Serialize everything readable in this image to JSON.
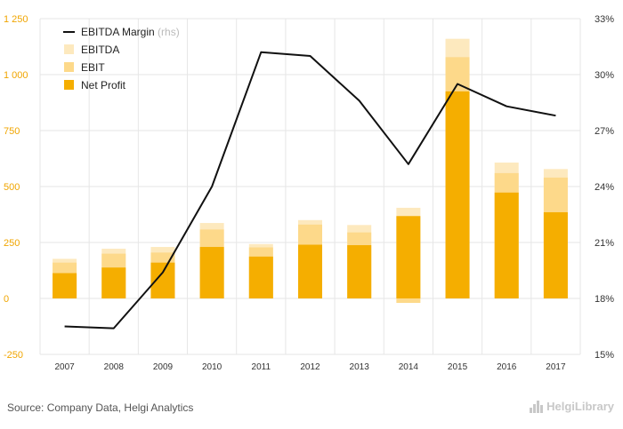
{
  "chart_data": {
    "type": "bar",
    "categories": [
      "2007",
      "2008",
      "2009",
      "2010",
      "2011",
      "2012",
      "2013",
      "2014",
      "2015",
      "2016",
      "2017"
    ],
    "series": [
      {
        "name": "Net Profit",
        "axis": "left",
        "values": [
          113,
          138,
          160,
          230,
          187,
          240,
          238,
          368,
          925,
          473,
          385
        ],
        "color": "#f5ae00"
      },
      {
        "name": "EBIT",
        "axis": "left",
        "values": [
          160,
          200,
          205,
          308,
          228,
          330,
          295,
          -20,
          1078,
          560,
          540
        ],
        "color": "#fdd98a"
      },
      {
        "name": "EBITDA",
        "axis": "left",
        "values": [
          177,
          222,
          230,
          337,
          243,
          350,
          328,
          405,
          1160,
          607,
          578
        ],
        "color": "#fde9be"
      },
      {
        "name": "EBITDA Margin",
        "axis": "right",
        "type": "line",
        "unit": "%",
        "values": [
          16.5,
          16.4,
          19.4,
          24.0,
          31.2,
          31.0,
          28.6,
          25.2,
          29.5,
          28.3,
          27.8
        ],
        "color": "#111111"
      }
    ],
    "y_left": {
      "min": -250,
      "max": 1250,
      "ticks": [
        -250,
        0,
        250,
        500,
        750,
        1000,
        1250
      ],
      "tick_labels": [
        "-250",
        "0",
        "250",
        "500",
        "750",
        "1 000",
        "1 250"
      ]
    },
    "y_right": {
      "min": 15,
      "max": 33,
      "ticks": [
        15,
        18,
        21,
        24,
        27,
        30,
        33
      ],
      "tick_labels": [
        "15%",
        "18%",
        "21%",
        "24%",
        "27%",
        "30%",
        "33%"
      ]
    },
    "grid": true,
    "legend": {
      "placement": "top-left",
      "items": [
        {
          "label": "EBITDA Margin",
          "suffix": " (rhs)",
          "marker": "line",
          "color": "#111111"
        },
        {
          "label": "EBITDA",
          "marker": "square",
          "color": "#fde9be"
        },
        {
          "label": "EBIT",
          "marker": "square",
          "color": "#fdd98a"
        },
        {
          "label": "Net Profit",
          "marker": "square",
          "color": "#f5ae00"
        }
      ]
    }
  },
  "footer": {
    "source": "Source: Company Data, Helgi Analytics"
  },
  "brand": {
    "name": "HelgiLibrary"
  },
  "colors": {
    "grid": "#e6e6e6",
    "left_axis_text": "#f0a500"
  }
}
